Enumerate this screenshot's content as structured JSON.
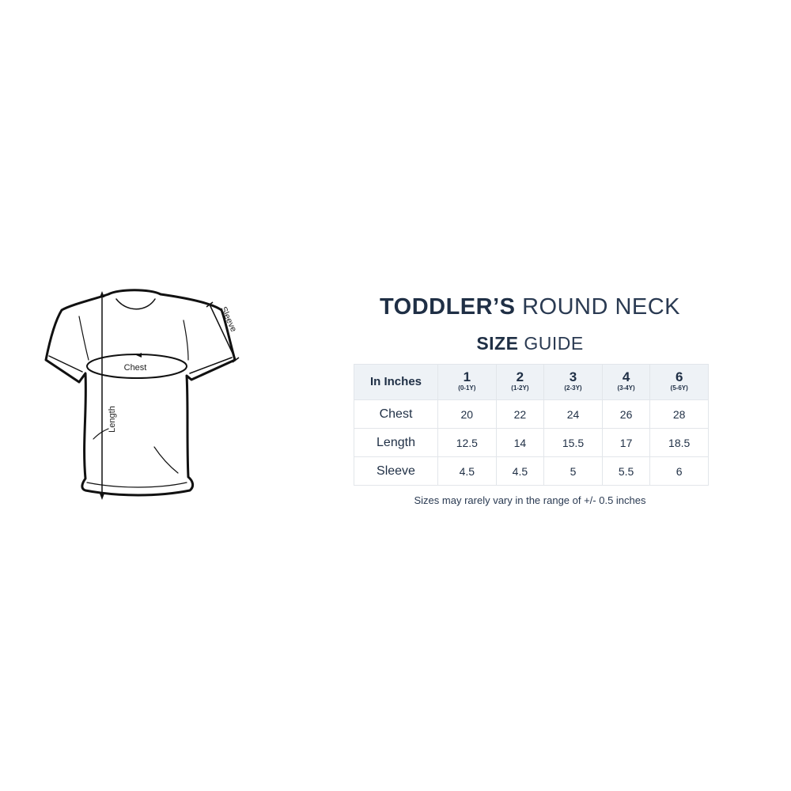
{
  "diagram": {
    "labels": {
      "chest": "Chest",
      "length": "Length",
      "sleeve": "Sleeve"
    }
  },
  "title": {
    "bold": "TODDLER’S",
    "light": "ROUND NECK"
  },
  "subtitle": {
    "bold": "SIZE",
    "light": "GUIDE"
  },
  "table": {
    "corner": "In Inches",
    "sizes": [
      {
        "size": "1",
        "age": "(0-1Y)"
      },
      {
        "size": "2",
        "age": "(1-2Y)"
      },
      {
        "size": "3",
        "age": "(2-3Y)"
      },
      {
        "size": "4",
        "age": "(3-4Y)"
      },
      {
        "size": "6",
        "age": "(5-6Y)"
      }
    ],
    "rows": [
      {
        "label": "Chest",
        "values": [
          "20",
          "22",
          "24",
          "26",
          "28"
        ]
      },
      {
        "label": "Length",
        "values": [
          "12.5",
          "14",
          "15.5",
          "17",
          "18.5"
        ]
      },
      {
        "label": "Sleeve",
        "values": [
          "4.5",
          "4.5",
          "5",
          "5.5",
          "6"
        ]
      }
    ]
  },
  "note": "Sizes may rarely vary in the range of +/- 0.5 inches",
  "colors": {
    "text": "#1f2f45",
    "header_bg": "#eef2f6",
    "border": "#e2e6ea"
  }
}
